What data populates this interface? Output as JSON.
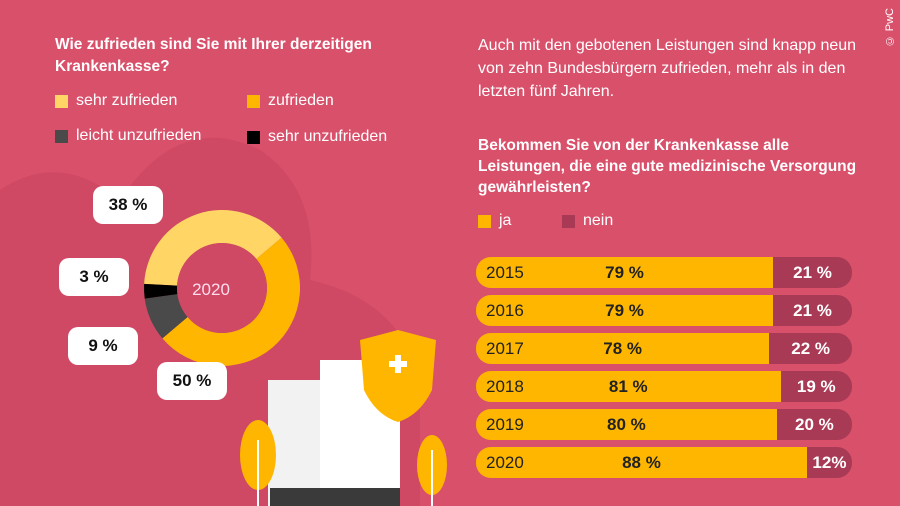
{
  "copyright": "© PwC",
  "colors": {
    "background": "#d9506b",
    "sehr_zufrieden": "#ffd566",
    "zufrieden": "#ffb600",
    "leicht_unzufrieden": "#4a4a4a",
    "sehr_unzufrieden": "#000000",
    "ja": "#ffb600",
    "nein": "#a93a55"
  },
  "chart_data": [
    {
      "type": "pie",
      "title": "Wie zufrieden sind Sie mit Ihrer derzeitigen Krankenkasse?",
      "center_label": "2020",
      "legend": [
        "sehr zufrieden",
        "zufrieden",
        "leicht unzufrieden",
        "sehr unzufrieden"
      ],
      "values": [
        38,
        50,
        9,
        3
      ],
      "labels": [
        "38 %",
        "50 %",
        "9 %",
        "3 %"
      ]
    },
    {
      "type": "bar",
      "orientation": "horizontal",
      "stacked": true,
      "title": "Bekommen Sie von der Krankenkasse alle Leistungen, die eine gute medizinische Versorgung gewährleisten?",
      "categories": [
        "2015",
        "2016",
        "2017",
        "2018",
        "2019",
        "2020"
      ],
      "series": [
        {
          "name": "ja",
          "values": [
            79,
            79,
            78,
            81,
            80,
            88
          ],
          "labels": [
            "79 %",
            "79 %",
            "78 %",
            "81 %",
            "80 %",
            "88 %"
          ]
        },
        {
          "name": "nein",
          "values": [
            21,
            21,
            22,
            19,
            20,
            12
          ],
          "labels": [
            "21 %",
            "21 %",
            "22 %",
            "19 %",
            "20 %",
            "12%"
          ]
        }
      ]
    }
  ],
  "intro": "Auch mit den gebotenen Leistungen sind knapp neun von zehn Bundesbürgern zufrieden, mehr als in den letzten fünf Jahren."
}
